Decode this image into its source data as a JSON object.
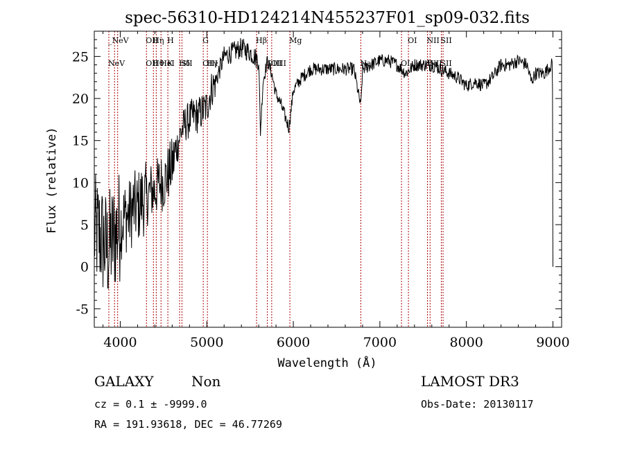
{
  "chart_data": {
    "type": "line",
    "title": "spec-56310-HD124214N455237F01_sp09-032.fits",
    "xlabel": "Wavelength (Å)",
    "ylabel": "Flux (relative)",
    "xlim": [
      3700,
      9100
    ],
    "ylim": [
      -7.2,
      28
    ],
    "xticks": [
      4000,
      5000,
      6000,
      7000,
      8000,
      9000
    ],
    "yticks": [
      -5,
      0,
      5,
      10,
      15,
      20,
      25
    ],
    "grid": false,
    "series_color": "#000000",
    "line_color": "#aa0000",
    "anchors": [
      [
        3700,
        4
      ],
      [
        3750,
        4
      ],
      [
        3800,
        3
      ],
      [
        3850,
        2
      ],
      [
        3900,
        3
      ],
      [
        3950,
        4
      ],
      [
        4000,
        5
      ],
      [
        4050,
        6
      ],
      [
        4100,
        6
      ],
      [
        4150,
        7
      ],
      [
        4200,
        7
      ],
      [
        4250,
        8
      ],
      [
        4300,
        8
      ],
      [
        4350,
        9
      ],
      [
        4400,
        9
      ],
      [
        4450,
        10
      ],
      [
        4500,
        10
      ],
      [
        4550,
        11
      ],
      [
        4600,
        12
      ],
      [
        4650,
        14
      ],
      [
        4700,
        16
      ],
      [
        4750,
        17
      ],
      [
        4800,
        17.5
      ],
      [
        4850,
        18
      ],
      [
        4900,
        18
      ],
      [
        4950,
        18.5
      ],
      [
        5000,
        19
      ],
      [
        5050,
        21
      ],
      [
        5100,
        22
      ],
      [
        5150,
        23.5
      ],
      [
        5200,
        25
      ],
      [
        5300,
        25.5
      ],
      [
        5400,
        26
      ],
      [
        5500,
        25.5
      ],
      [
        5600,
        24.5
      ],
      [
        5620,
        16
      ],
      [
        5650,
        22
      ],
      [
        5700,
        24.5
      ],
      [
        5750,
        23
      ],
      [
        5800,
        20.5
      ],
      [
        5850,
        19.5
      ],
      [
        5900,
        18
      ],
      [
        5950,
        16.5
      ],
      [
        6000,
        21
      ],
      [
        6100,
        22.5
      ],
      [
        6200,
        23.5
      ],
      [
        6300,
        23.5
      ],
      [
        6500,
        23.5
      ],
      [
        6700,
        23.5
      ],
      [
        6780,
        19
      ],
      [
        6800,
        23.5
      ],
      [
        6900,
        24
      ],
      [
        7000,
        24.5
      ],
      [
        7100,
        24.5
      ],
      [
        7200,
        24
      ],
      [
        7300,
        23
      ],
      [
        7400,
        24
      ],
      [
        7500,
        24
      ],
      [
        7600,
        24
      ],
      [
        7700,
        23.5
      ],
      [
        7800,
        23
      ],
      [
        7900,
        22.5
      ],
      [
        8000,
        21.5
      ],
      [
        8100,
        22
      ],
      [
        8200,
        21.5
      ],
      [
        8300,
        22.5
      ],
      [
        8400,
        24
      ],
      [
        8500,
        24
      ],
      [
        8600,
        24.5
      ],
      [
        8700,
        24
      ],
      [
        8750,
        22
      ],
      [
        8800,
        23
      ],
      [
        8900,
        23
      ],
      [
        8980,
        24
      ]
    ],
    "lines": [
      {
        "w": 3868,
        "top": "_NeV",
        "bottom": "NeV"
      },
      {
        "w": 3934,
        "top": "",
        "bottom": ""
      },
      {
        "w": 3970,
        "top": "",
        "bottom": ""
      },
      {
        "w": 4303,
        "top": "OII",
        "bottom": "OII"
      },
      {
        "w": 4383,
        "top": "Hη",
        "bottom": "Hθ"
      },
      {
        "w": 4416,
        "top": "",
        "bottom": ""
      },
      {
        "w": 4471,
        "top": "",
        "bottom": "HeI"
      },
      {
        "w": 4550,
        "top": "H",
        "bottom": "K"
      },
      {
        "w": 4686,
        "top": "",
        "bottom": "Hδ"
      },
      {
        "w": 4713,
        "top": "",
        "bottom": "SII"
      },
      {
        "w": 4959,
        "top": "G",
        "bottom": "OIII"
      },
      {
        "w": 5007,
        "top": "",
        "bottom": "Hγ"
      },
      {
        "w": 5575,
        "top": "Hβ",
        "bottom": ""
      },
      {
        "w": 5700,
        "top": "",
        "bottom": "OIII"
      },
      {
        "w": 5750,
        "top": "",
        "bottom": "OIII"
      },
      {
        "w": 5960,
        "top": "Mg",
        "bottom": ""
      },
      {
        "w": 6780,
        "top": "",
        "bottom": "Na"
      },
      {
        "w": 7250,
        "top": "",
        "bottom": "OI"
      },
      {
        "w": 7330,
        "top": "OI",
        "bottom": ""
      },
      {
        "w": 7550,
        "top": "NII",
        "bottom": "Hα"
      },
      {
        "w": 7580,
        "top": "",
        "bottom": "NII"
      },
      {
        "w": 7710,
        "top": "SII",
        "bottom": "SII"
      },
      {
        "w": 7730,
        "top": "",
        "bottom": ""
      }
    ]
  },
  "footer": {
    "class_label": "GALAXY",
    "subclass_label": "Non",
    "survey_label": "LAMOST DR3",
    "cz_text": "cz = 0.1 ± -9999.0",
    "obs_date_text": "Obs-Date: 20130117",
    "coords_text": "RA = 191.93618, DEC =  46.77269"
  }
}
